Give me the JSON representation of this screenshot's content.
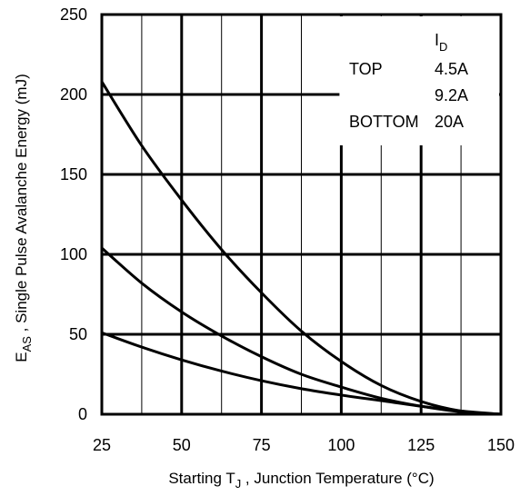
{
  "chart_data": {
    "type": "line",
    "xlabel": {
      "prefix": "Starting T",
      "sub": "J",
      "suffix": " , Junction Temperature (°C)"
    },
    "ylabel": {
      "prefix": "E",
      "sub": "AS",
      "suffix": " , Single Pulse Avalanche Energy (mJ)"
    },
    "xlim": [
      25,
      150
    ],
    "ylim": [
      0,
      250
    ],
    "x_ticks": [
      "25",
      "50",
      "75",
      "100",
      "125",
      "150"
    ],
    "y_ticks": [
      "0",
      "50",
      "100",
      "150",
      "200",
      "250"
    ],
    "grid": true,
    "legend": {
      "header_main": "I",
      "header_sub": "D",
      "rows": [
        {
          "position": "TOP",
          "value": "4.5A"
        },
        {
          "position": "",
          "value": "9.2A"
        },
        {
          "position": "BOTTOM",
          "value": "20A"
        }
      ]
    },
    "series": [
      {
        "name": "4.5A",
        "x": [
          25,
          37.5,
          50,
          62.5,
          75,
          87.5,
          100,
          112.5,
          125,
          137.5,
          150
        ],
        "y": [
          208,
          168,
          134,
          103,
          76,
          52,
          33,
          18,
          8,
          2,
          0
        ]
      },
      {
        "name": "9.2A",
        "x": [
          25,
          37.5,
          50,
          62.5,
          75,
          87.5,
          100,
          112.5,
          125,
          137.5,
          150
        ],
        "y": [
          104,
          82,
          64,
          49,
          36,
          25,
          17,
          10,
          5,
          1.5,
          0
        ]
      },
      {
        "name": "20A",
        "x": [
          25,
          37.5,
          50,
          62.5,
          75,
          87.5,
          100,
          112.5,
          125,
          137.5,
          150
        ],
        "y": [
          51,
          42,
          34,
          27,
          21,
          16,
          12,
          8.5,
          5,
          2,
          0
        ]
      }
    ]
  }
}
